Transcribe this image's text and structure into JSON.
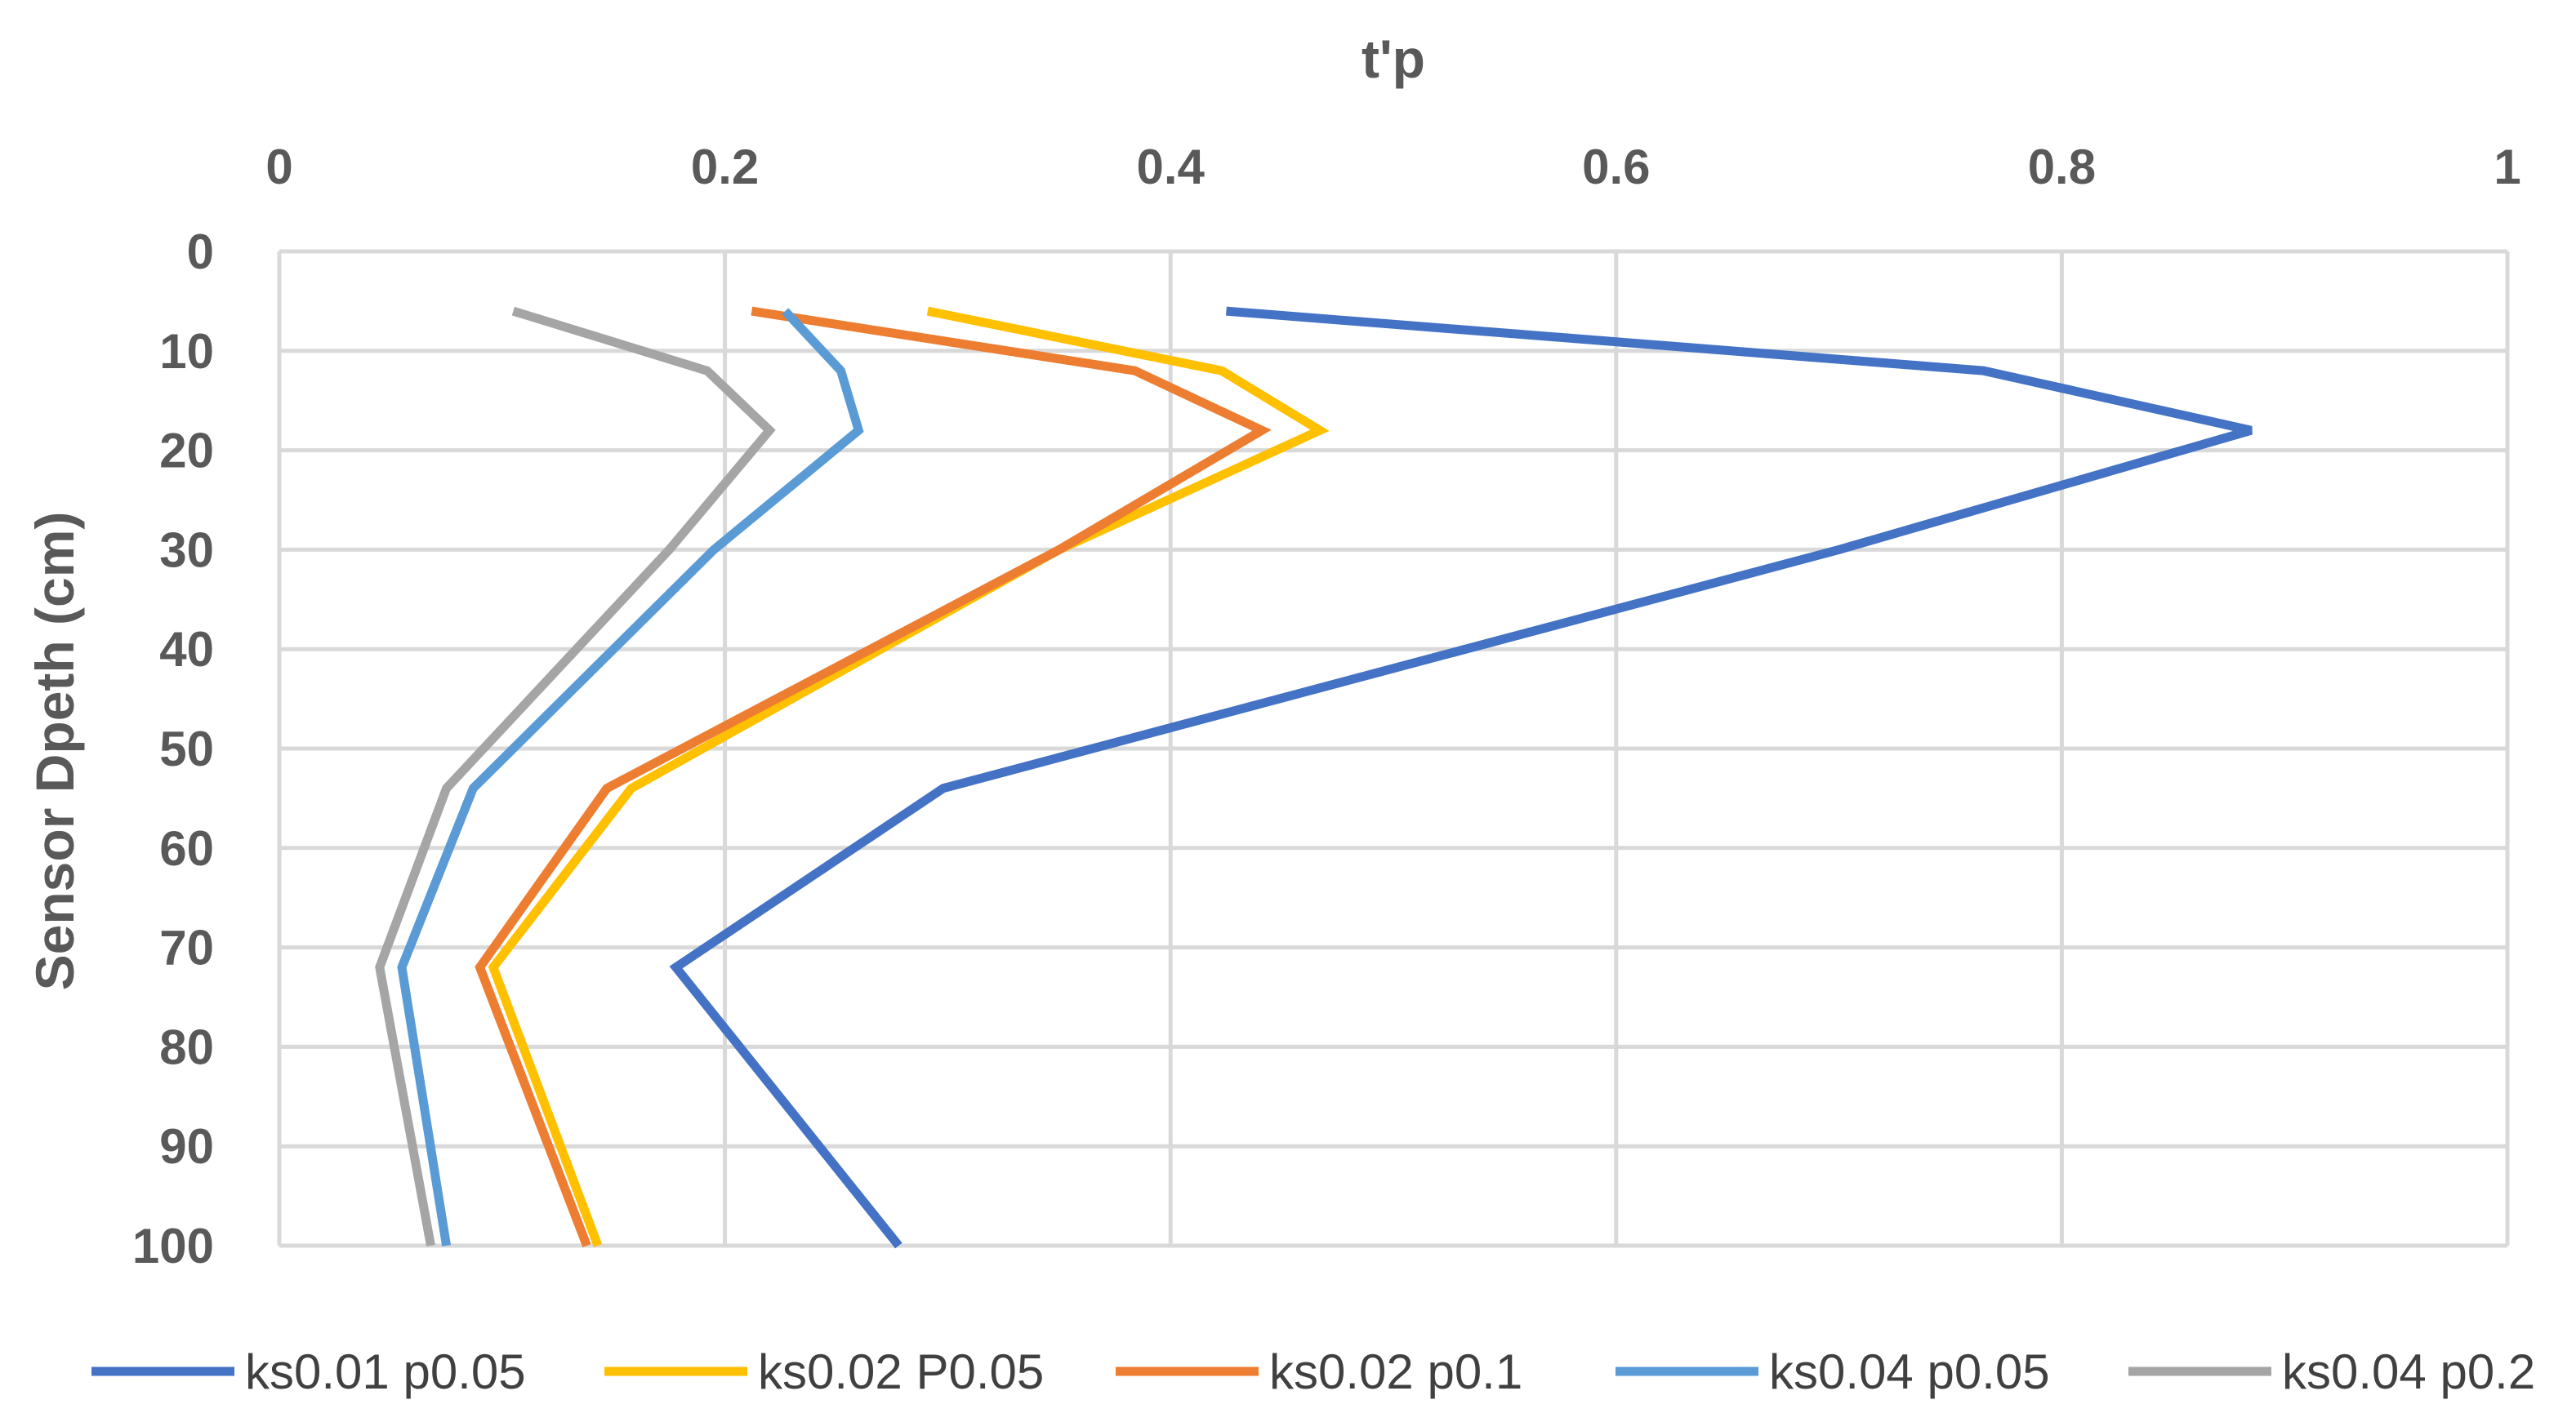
{
  "chart_data": {
    "type": "line",
    "title": "",
    "xlabel": "t'p",
    "ylabel": "Sensor Dpeth (cm)",
    "xlim": [
      0,
      1
    ],
    "ylim": [
      0,
      100
    ],
    "x_axis_position": "top",
    "y_axis_inverted": true,
    "x_ticks": [
      0,
      0.2,
      0.4,
      0.6,
      0.8,
      1
    ],
    "x_tick_labels": [
      "0",
      "0.2",
      "0.4",
      "0.6",
      "0.8",
      "1"
    ],
    "y_ticks": [
      0,
      10,
      20,
      30,
      40,
      50,
      60,
      70,
      80,
      90,
      100
    ],
    "y_tick_labels": [
      "0",
      "10",
      "20",
      "30",
      "40",
      "50",
      "60",
      "70",
      "80",
      "90",
      "100"
    ],
    "grid": true,
    "legend_position": "bottom",
    "depths": [
      6,
      12,
      18,
      30,
      54,
      72,
      100
    ],
    "series": [
      {
        "name": "ks0.01 p0.05",
        "color": "#4472C4",
        "values": [
          0.425,
          0.765,
          0.885,
          0.7,
          0.298,
          0.178,
          0.278
        ]
      },
      {
        "name": "ks0.02 P0.05",
        "color": "#FFC000",
        "values": [
          0.291,
          0.423,
          0.467,
          0.35,
          0.158,
          0.096,
          0.143
        ]
      },
      {
        "name": "ks0.02 p0.1",
        "color": "#ED7D31",
        "values": [
          0.212,
          0.384,
          0.441,
          0.35,
          0.147,
          0.09,
          0.138
        ]
      },
      {
        "name": "ks0.04 p0.05",
        "color": "#5B9BD5",
        "values": [
          0.227,
          0.252,
          0.26,
          0.195,
          0.087,
          0.055,
          0.075
        ]
      },
      {
        "name": "ks0.04 p0.2",
        "color": "#A5A5A5",
        "values": [
          0.105,
          0.192,
          0.22,
          0.175,
          0.075,
          0.045,
          0.068
        ]
      }
    ]
  }
}
